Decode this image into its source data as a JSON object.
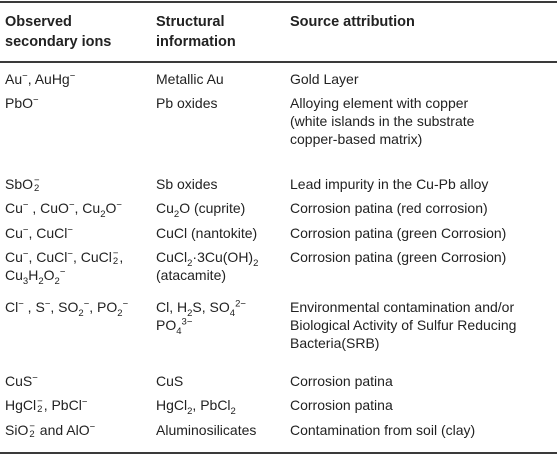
{
  "headers": {
    "col0_line1": "Observed",
    "col0_line2": "secondary ions",
    "col1_line1": "Structural",
    "col1_line2": "information",
    "col2": "Source attribution"
  },
  "rows": [
    {
      "ions": "Au⁻, AuHg⁻",
      "structure": "Metallic Au",
      "source": [
        "Gold Layer"
      ]
    },
    {
      "ions": "PbO⁻",
      "structure": "Pb oxides",
      "source": [
        "Alloying element with copper",
        "(white islands in the substrate",
        "copper-based matrix)"
      ]
    },
    {
      "ions": "SbO₂⁻",
      "structure": "Sb oxides",
      "source": [
        "Lead impurity in the Cu-Pb alloy"
      ]
    },
    {
      "ions": "Cu⁻, CuO⁻, Cu₂O⁻",
      "structure": "Cu₂O (cuprite)",
      "source": [
        "Corrosion patina (red corrosion)"
      ]
    },
    {
      "ions": "Cu⁻, CuCl⁻",
      "structure": "CuCl (nantokite)",
      "source": [
        "Corrosion patina (green Corrosion)"
      ]
    },
    {
      "ions": "Cu⁻, CuCl⁻, CuCl₂⁻, Cu₃H₂O₂⁻",
      "structure": "CuCl₂·3Cu(OH)₂ (atacamite)",
      "source": [
        "Corrosion patina (green Corrosion)"
      ]
    },
    {
      "ions": "Cl⁻, S⁻, SO₂⁻, PO₂⁻",
      "structure": "Cl, H₂S, SO₄²⁻ PO₄³⁻",
      "source": [
        "Environmental contamination and/or",
        "Biological Activity of Sulfur Reducing",
        "Bacteria(SRB)"
      ]
    },
    {
      "ions": "CuS⁻",
      "structure": "CuS",
      "source": [
        "Corrosion patina"
      ]
    },
    {
      "ions": "HgCl₂⁻, PbCl⁻",
      "structure": "HgCl₂, PbCl₂",
      "source": [
        "Corrosion patina"
      ]
    },
    {
      "ions": "SiO₂⁻ and AlO⁻",
      "structure": "Aluminosilicates",
      "source": [
        "Contamination from soil (clay)"
      ]
    }
  ]
}
